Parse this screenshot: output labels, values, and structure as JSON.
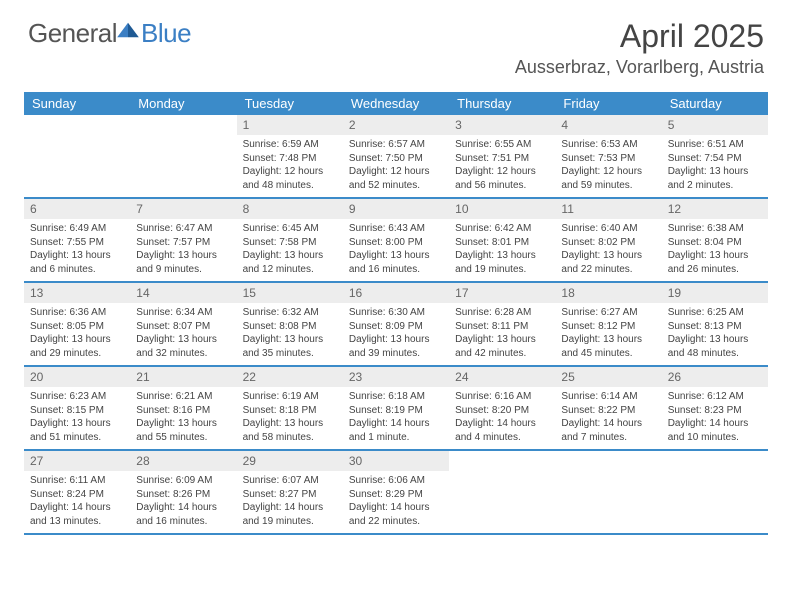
{
  "logo": {
    "text1": "General",
    "text2": "Blue"
  },
  "title": "April 2025",
  "location": "Ausserbraz, Vorarlberg, Austria",
  "colors": {
    "header_bg": "#3b8bc9",
    "header_text": "#ffffff",
    "daynum_bg": "#ededed",
    "border": "#3b8bc9",
    "body_text": "#444444",
    "logo_gray": "#555555",
    "logo_blue": "#3b7fc4"
  },
  "typography": {
    "title_fontsize": 32,
    "location_fontsize": 18,
    "dayheader_fontsize": 13,
    "cell_fontsize": 10,
    "logo_fontsize": 26
  },
  "dayNames": [
    "Sunday",
    "Monday",
    "Tuesday",
    "Wednesday",
    "Thursday",
    "Friday",
    "Saturday"
  ],
  "weeks": [
    [
      {
        "n": "",
        "sr": "",
        "ss": "",
        "dl": ""
      },
      {
        "n": "",
        "sr": "",
        "ss": "",
        "dl": ""
      },
      {
        "n": "1",
        "sr": "Sunrise: 6:59 AM",
        "ss": "Sunset: 7:48 PM",
        "dl": "Daylight: 12 hours and 48 minutes."
      },
      {
        "n": "2",
        "sr": "Sunrise: 6:57 AM",
        "ss": "Sunset: 7:50 PM",
        "dl": "Daylight: 12 hours and 52 minutes."
      },
      {
        "n": "3",
        "sr": "Sunrise: 6:55 AM",
        "ss": "Sunset: 7:51 PM",
        "dl": "Daylight: 12 hours and 56 minutes."
      },
      {
        "n": "4",
        "sr": "Sunrise: 6:53 AM",
        "ss": "Sunset: 7:53 PM",
        "dl": "Daylight: 12 hours and 59 minutes."
      },
      {
        "n": "5",
        "sr": "Sunrise: 6:51 AM",
        "ss": "Sunset: 7:54 PM",
        "dl": "Daylight: 13 hours and 2 minutes."
      }
    ],
    [
      {
        "n": "6",
        "sr": "Sunrise: 6:49 AM",
        "ss": "Sunset: 7:55 PM",
        "dl": "Daylight: 13 hours and 6 minutes."
      },
      {
        "n": "7",
        "sr": "Sunrise: 6:47 AM",
        "ss": "Sunset: 7:57 PM",
        "dl": "Daylight: 13 hours and 9 minutes."
      },
      {
        "n": "8",
        "sr": "Sunrise: 6:45 AM",
        "ss": "Sunset: 7:58 PM",
        "dl": "Daylight: 13 hours and 12 minutes."
      },
      {
        "n": "9",
        "sr": "Sunrise: 6:43 AM",
        "ss": "Sunset: 8:00 PM",
        "dl": "Daylight: 13 hours and 16 minutes."
      },
      {
        "n": "10",
        "sr": "Sunrise: 6:42 AM",
        "ss": "Sunset: 8:01 PM",
        "dl": "Daylight: 13 hours and 19 minutes."
      },
      {
        "n": "11",
        "sr": "Sunrise: 6:40 AM",
        "ss": "Sunset: 8:02 PM",
        "dl": "Daylight: 13 hours and 22 minutes."
      },
      {
        "n": "12",
        "sr": "Sunrise: 6:38 AM",
        "ss": "Sunset: 8:04 PM",
        "dl": "Daylight: 13 hours and 26 minutes."
      }
    ],
    [
      {
        "n": "13",
        "sr": "Sunrise: 6:36 AM",
        "ss": "Sunset: 8:05 PM",
        "dl": "Daylight: 13 hours and 29 minutes."
      },
      {
        "n": "14",
        "sr": "Sunrise: 6:34 AM",
        "ss": "Sunset: 8:07 PM",
        "dl": "Daylight: 13 hours and 32 minutes."
      },
      {
        "n": "15",
        "sr": "Sunrise: 6:32 AM",
        "ss": "Sunset: 8:08 PM",
        "dl": "Daylight: 13 hours and 35 minutes."
      },
      {
        "n": "16",
        "sr": "Sunrise: 6:30 AM",
        "ss": "Sunset: 8:09 PM",
        "dl": "Daylight: 13 hours and 39 minutes."
      },
      {
        "n": "17",
        "sr": "Sunrise: 6:28 AM",
        "ss": "Sunset: 8:11 PM",
        "dl": "Daylight: 13 hours and 42 minutes."
      },
      {
        "n": "18",
        "sr": "Sunrise: 6:27 AM",
        "ss": "Sunset: 8:12 PM",
        "dl": "Daylight: 13 hours and 45 minutes."
      },
      {
        "n": "19",
        "sr": "Sunrise: 6:25 AM",
        "ss": "Sunset: 8:13 PM",
        "dl": "Daylight: 13 hours and 48 minutes."
      }
    ],
    [
      {
        "n": "20",
        "sr": "Sunrise: 6:23 AM",
        "ss": "Sunset: 8:15 PM",
        "dl": "Daylight: 13 hours and 51 minutes."
      },
      {
        "n": "21",
        "sr": "Sunrise: 6:21 AM",
        "ss": "Sunset: 8:16 PM",
        "dl": "Daylight: 13 hours and 55 minutes."
      },
      {
        "n": "22",
        "sr": "Sunrise: 6:19 AM",
        "ss": "Sunset: 8:18 PM",
        "dl": "Daylight: 13 hours and 58 minutes."
      },
      {
        "n": "23",
        "sr": "Sunrise: 6:18 AM",
        "ss": "Sunset: 8:19 PM",
        "dl": "Daylight: 14 hours and 1 minute."
      },
      {
        "n": "24",
        "sr": "Sunrise: 6:16 AM",
        "ss": "Sunset: 8:20 PM",
        "dl": "Daylight: 14 hours and 4 minutes."
      },
      {
        "n": "25",
        "sr": "Sunrise: 6:14 AM",
        "ss": "Sunset: 8:22 PM",
        "dl": "Daylight: 14 hours and 7 minutes."
      },
      {
        "n": "26",
        "sr": "Sunrise: 6:12 AM",
        "ss": "Sunset: 8:23 PM",
        "dl": "Daylight: 14 hours and 10 minutes."
      }
    ],
    [
      {
        "n": "27",
        "sr": "Sunrise: 6:11 AM",
        "ss": "Sunset: 8:24 PM",
        "dl": "Daylight: 14 hours and 13 minutes."
      },
      {
        "n": "28",
        "sr": "Sunrise: 6:09 AM",
        "ss": "Sunset: 8:26 PM",
        "dl": "Daylight: 14 hours and 16 minutes."
      },
      {
        "n": "29",
        "sr": "Sunrise: 6:07 AM",
        "ss": "Sunset: 8:27 PM",
        "dl": "Daylight: 14 hours and 19 minutes."
      },
      {
        "n": "30",
        "sr": "Sunrise: 6:06 AM",
        "ss": "Sunset: 8:29 PM",
        "dl": "Daylight: 14 hours and 22 minutes."
      },
      {
        "n": "",
        "sr": "",
        "ss": "",
        "dl": ""
      },
      {
        "n": "",
        "sr": "",
        "ss": "",
        "dl": ""
      },
      {
        "n": "",
        "sr": "",
        "ss": "",
        "dl": ""
      }
    ]
  ]
}
